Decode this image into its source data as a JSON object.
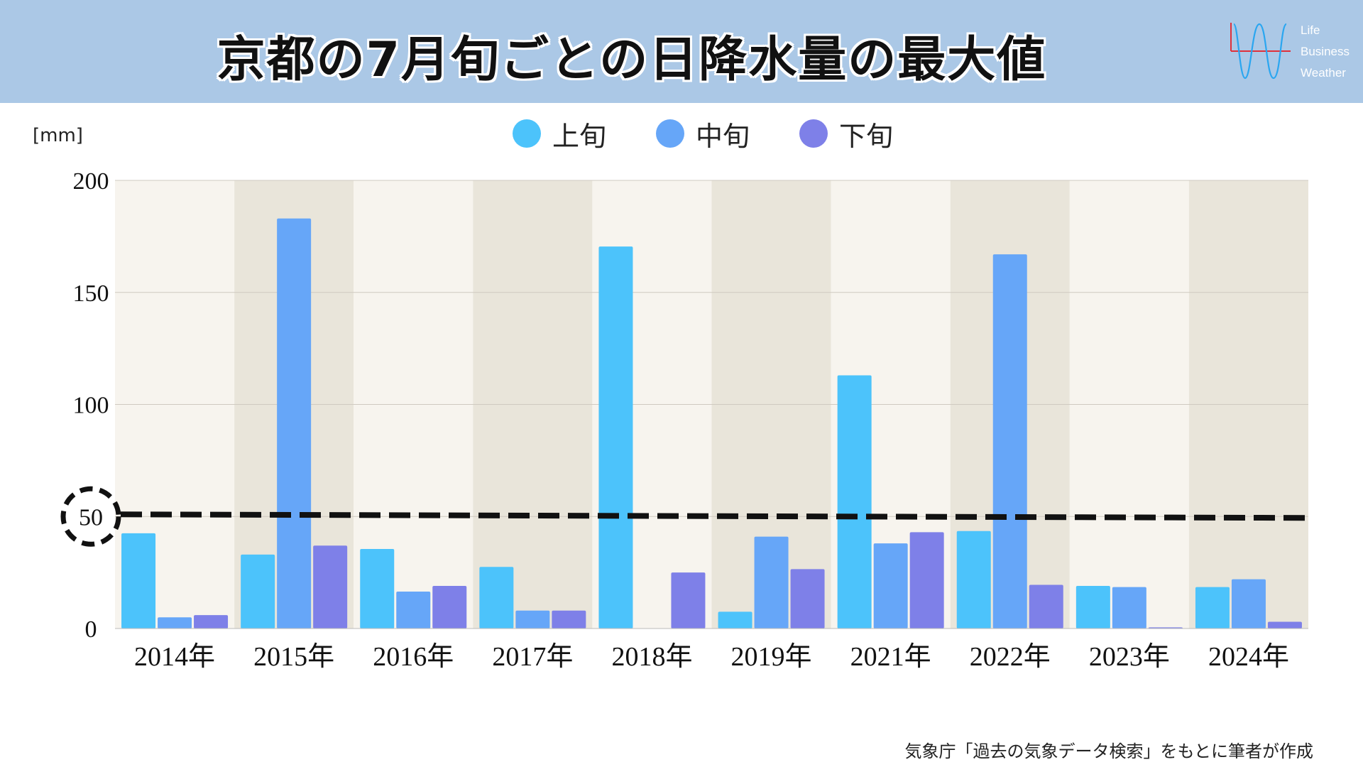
{
  "header": {
    "title": "京都の7月旬ごとの日降水量の最大値",
    "background_color": "#abc8e6"
  },
  "logo": {
    "lines": [
      "Life",
      "Business",
      "Weather"
    ]
  },
  "unit_label": "[mm]",
  "source_note": "気象庁「過去の気象データ検索」をもとに筆者が作成",
  "chart_data": {
    "type": "bar",
    "title": "京都の7月旬ごとの日降水量の最大値",
    "ylabel": "[mm]",
    "xlabel": "",
    "ylim": [
      0,
      200
    ],
    "yticks": [
      0,
      50,
      100,
      150,
      200
    ],
    "yticks_highlighted": [
      50
    ],
    "reference_line": {
      "value": 50,
      "style": "dashed",
      "color": "#111111"
    },
    "grid": true,
    "legend_placement": "top",
    "categories": [
      "2014年",
      "2015年",
      "2016年",
      "2017年",
      "2018年",
      "2019年",
      "2021年",
      "2022年",
      "2023年",
      "2024年"
    ],
    "series": [
      {
        "name": "上旬",
        "color": "#4cc3fb",
        "values": [
          42.5,
          33,
          35.5,
          27.5,
          170.5,
          7.5,
          113,
          43.5,
          19,
          18.5
        ]
      },
      {
        "name": "中旬",
        "color": "#66a6f8",
        "values": [
          5,
          183,
          16.5,
          8,
          0,
          41,
          38,
          167,
          18.5,
          22
        ]
      },
      {
        "name": "下旬",
        "color": "#7e80e8",
        "values": [
          6,
          37,
          19,
          8,
          25,
          26.5,
          43,
          19.5,
          0.5,
          3
        ]
      }
    ],
    "band_colors": [
      "#f7f4ee",
      "#e9e5da"
    ]
  }
}
